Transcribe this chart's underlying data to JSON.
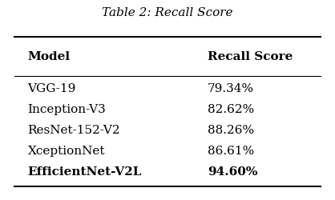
{
  "title": "Table 2: Recall Score",
  "col_headers": [
    "Model",
    "Recall Score"
  ],
  "rows": [
    [
      "VGG-19",
      "79.34%"
    ],
    [
      "Inception-V3",
      "82.62%"
    ],
    [
      "ResNet-152-V2",
      "88.26%"
    ],
    [
      "XceptionNet",
      "86.61%"
    ],
    [
      "EfficientNet-V2L",
      "94.60%"
    ]
  ],
  "last_row_bold": true,
  "background_color": "#ffffff",
  "title_fontsize": 11,
  "header_fontsize": 11,
  "data_fontsize": 11
}
